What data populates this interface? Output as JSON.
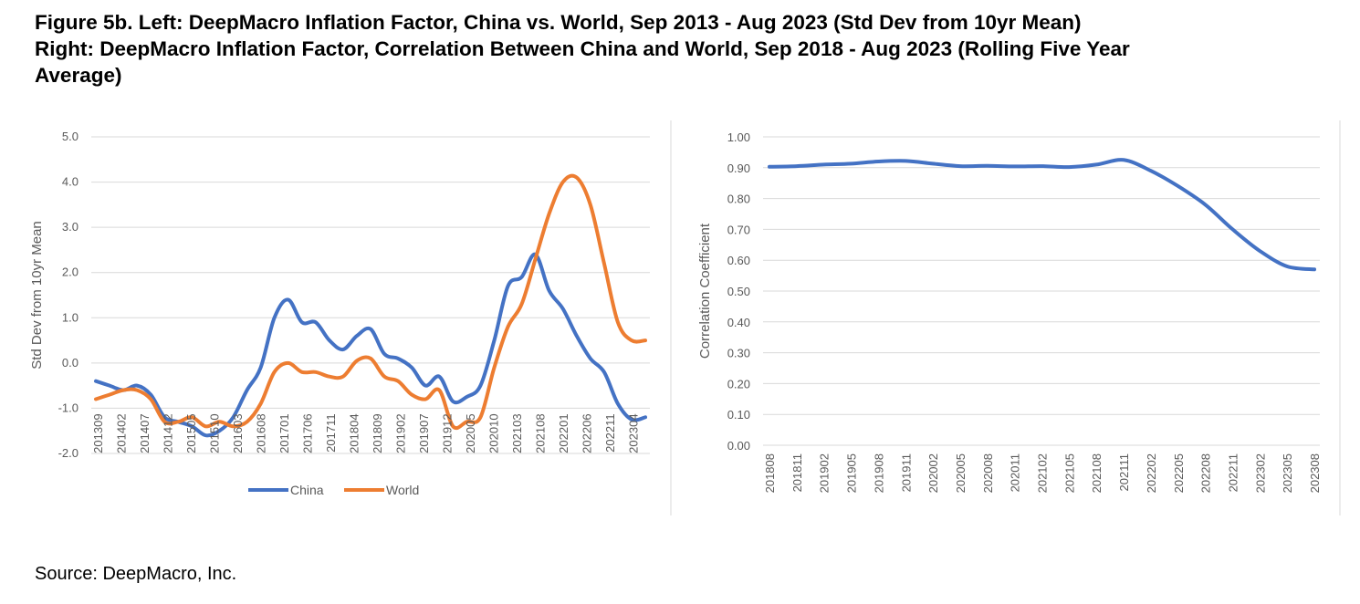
{
  "figure": {
    "title_line1": "Figure 5b. Left: DeepMacro Inflation Factor, China vs. World, Sep 2013 - Aug 2023 (Std Dev from 10yr Mean)",
    "title_line2": "Right: DeepMacro Inflation Factor, Correlation Between China and World, Sep 2018 - Aug 2023 (Rolling Five Year",
    "title_line3": "Average)",
    "source": "Source: DeepMacro, Inc."
  },
  "chart_data": [
    {
      "type": "line",
      "ylabel": "Std Dev from 10yr Mean",
      "xlabel": "",
      "ylim": [
        -2.0,
        5.0
      ],
      "yticks": [
        "5.0",
        "4.0",
        "3.0",
        "2.0",
        "1.0",
        "0.0",
        "-1.0",
        "-2.0"
      ],
      "xtick_labels": [
        "201309",
        "201402",
        "201407",
        "201412",
        "201505",
        "201510",
        "201603",
        "201608",
        "201701",
        "201706",
        "201711",
        "201804",
        "201809",
        "201902",
        "201907",
        "201912",
        "202005",
        "202010",
        "202103",
        "202108",
        "202201",
        "202206",
        "202211",
        "202304"
      ],
      "x": [
        "201309",
        "201312",
        "201403",
        "201406",
        "201409",
        "201412",
        "201503",
        "201506",
        "201509",
        "201512",
        "201603",
        "201606",
        "201609",
        "201612",
        "201703",
        "201706",
        "201709",
        "201712",
        "201803",
        "201806",
        "201809",
        "201812",
        "201903",
        "201906",
        "201909",
        "201912",
        "202003",
        "202006",
        "202009",
        "202012",
        "202103",
        "202106",
        "202109",
        "202112",
        "202203",
        "202206",
        "202209",
        "202212",
        "202303",
        "202306",
        "202308"
      ],
      "series": [
        {
          "name": "China",
          "color": "#4472C4",
          "values": [
            -0.4,
            -0.5,
            -0.6,
            -0.5,
            -0.7,
            -1.2,
            -1.3,
            -1.4,
            -1.6,
            -1.5,
            -1.2,
            -0.6,
            -0.1,
            1.0,
            1.4,
            0.9,
            0.9,
            0.5,
            0.3,
            0.6,
            0.75,
            0.2,
            0.1,
            -0.1,
            -0.5,
            -0.3,
            -0.85,
            -0.75,
            -0.5,
            0.5,
            1.7,
            1.9,
            2.4,
            1.6,
            1.2,
            0.6,
            0.1,
            -0.2,
            -0.9,
            -1.25,
            -1.2
          ]
        },
        {
          "name": "World",
          "color": "#ED7D31",
          "values": [
            -0.8,
            -0.7,
            -0.6,
            -0.6,
            -0.8,
            -1.3,
            -1.3,
            -1.2,
            -1.4,
            -1.3,
            -1.4,
            -1.3,
            -0.9,
            -0.2,
            0.0,
            -0.2,
            -0.2,
            -0.3,
            -0.3,
            0.05,
            0.1,
            -0.3,
            -0.4,
            -0.7,
            -0.8,
            -0.6,
            -1.4,
            -1.3,
            -1.2,
            -0.1,
            0.8,
            1.3,
            2.3,
            3.3,
            4.0,
            4.1,
            3.5,
            2.2,
            0.9,
            0.5,
            0.5
          ]
        }
      ],
      "legend": [
        "China",
        "World"
      ],
      "legend_position": "bottom",
      "grid": true
    },
    {
      "type": "line",
      "ylabel": "Correlation Coefficient",
      "xlabel": "",
      "ylim": [
        0.0,
        1.0
      ],
      "yticks": [
        "1.00",
        "0.90",
        "0.80",
        "0.70",
        "0.60",
        "0.50",
        "0.40",
        "0.30",
        "0.20",
        "0.10",
        "0.00"
      ],
      "xtick_labels": [
        "201808",
        "201811",
        "201902",
        "201905",
        "201908",
        "201911",
        "202002",
        "202005",
        "202008",
        "202011",
        "202102",
        "202105",
        "202108",
        "202111",
        "202202",
        "202205",
        "202208",
        "202211",
        "202302",
        "202305",
        "202308"
      ],
      "series": [
        {
          "name": "",
          "color": "#4472C4",
          "values": [
            0.903,
            0.905,
            0.91,
            0.913,
            0.92,
            0.922,
            0.913,
            0.905,
            0.906,
            0.904,
            0.905,
            0.902,
            0.91,
            0.925,
            0.89,
            0.84,
            0.78,
            0.7,
            0.63,
            0.58,
            0.57
          ]
        }
      ],
      "grid": true
    }
  ]
}
